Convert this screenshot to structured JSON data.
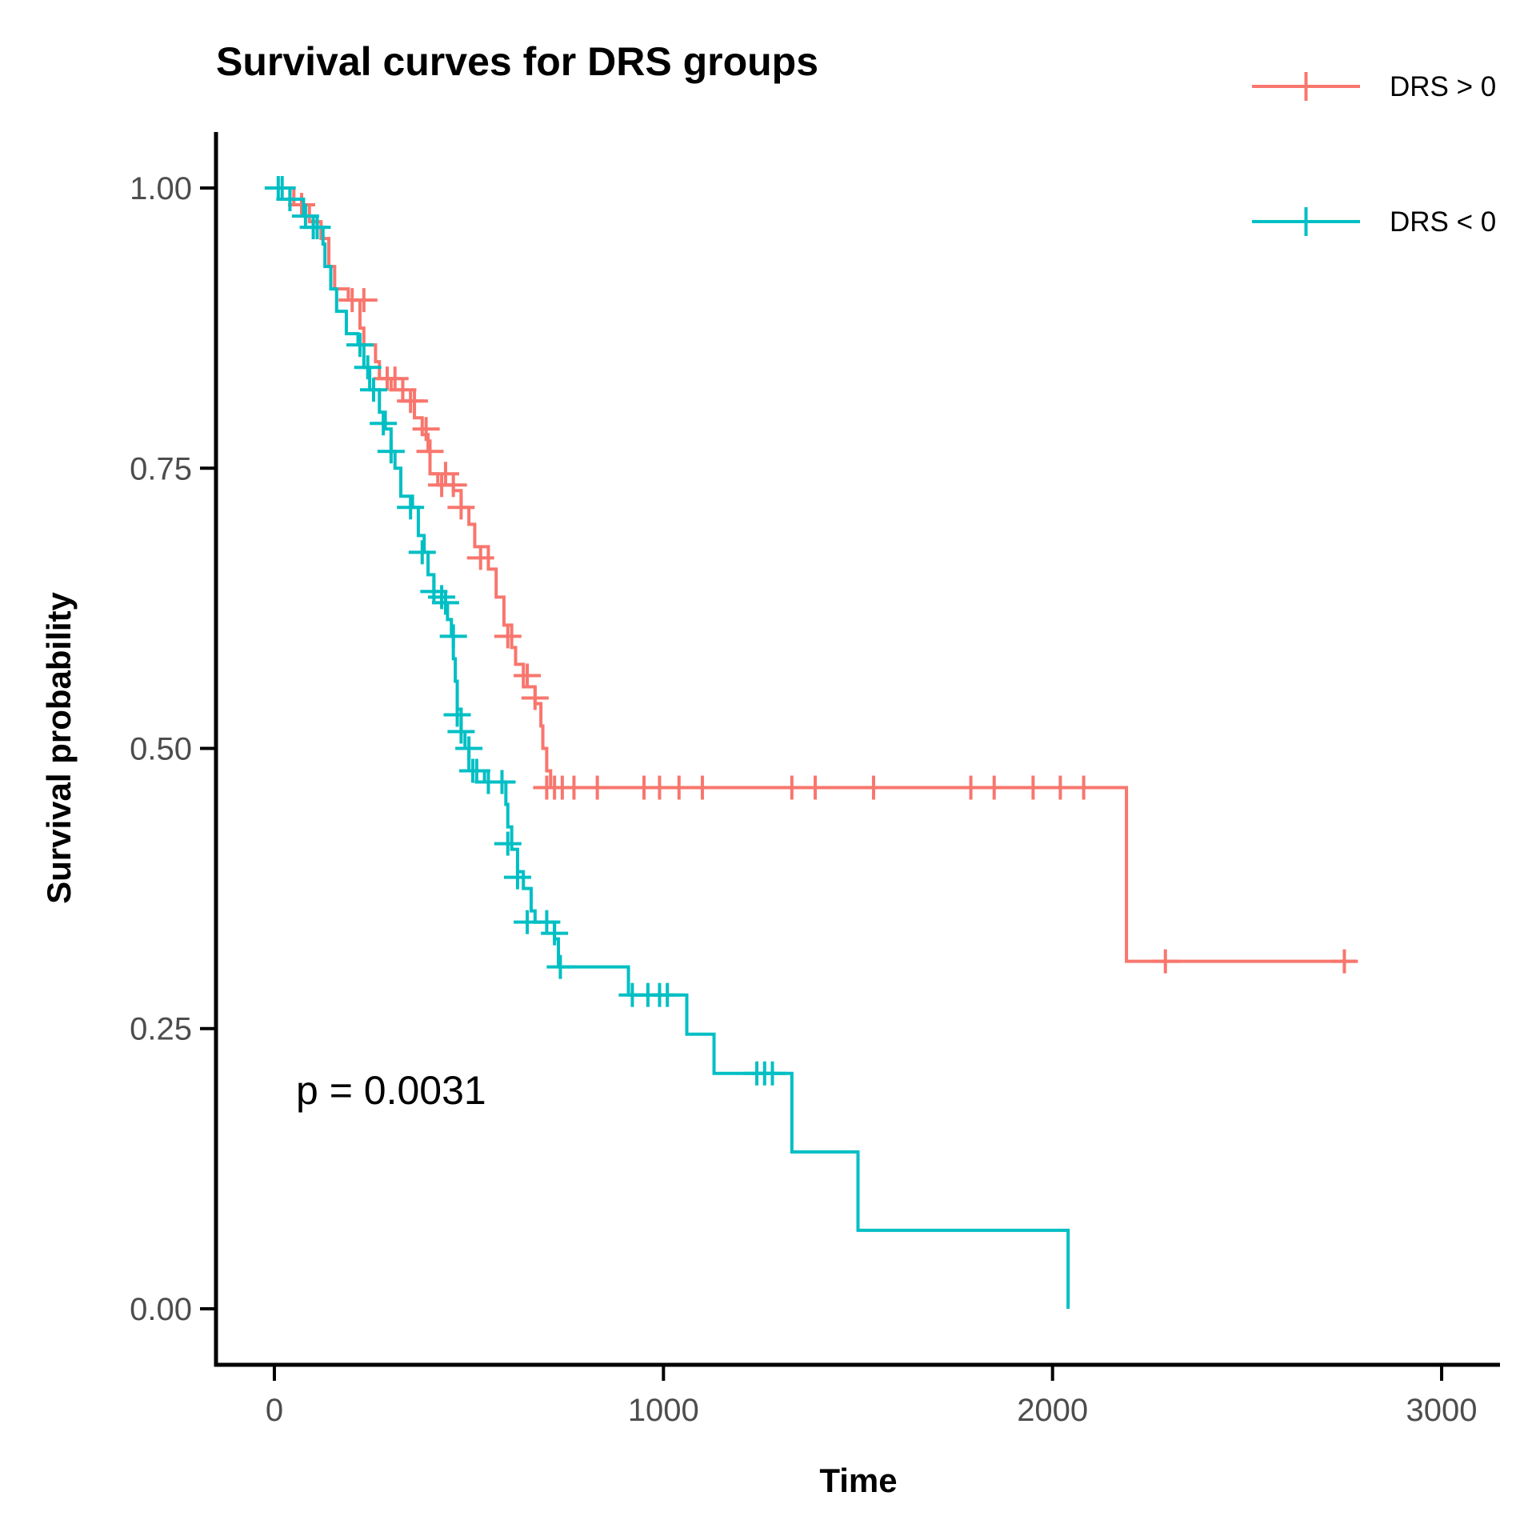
{
  "chart_data": {
    "type": "line",
    "title": "Survival curves for DRS groups",
    "xlabel": "Time",
    "ylabel": "Survival probability",
    "xlim": [
      -150,
      3150
    ],
    "ylim": [
      -0.05,
      1.05
    ],
    "x_ticks": [
      0,
      1000,
      2000,
      3000
    ],
    "x_tick_labels": [
      "0",
      "1000",
      "2000",
      "3000"
    ],
    "y_ticks": [
      0,
      0.25,
      0.5,
      0.75,
      1.0
    ],
    "y_tick_labels": [
      "0.00",
      "0.25",
      "0.50",
      "0.75",
      "1.00"
    ],
    "grid": false,
    "legend_position": "top-right",
    "annotation": {
      "text": "p = 0.0031",
      "x": 60,
      "y": 0.2
    },
    "series": [
      {
        "name": "DRS > 0",
        "color": "#F8766D",
        "steps": [
          [
            0,
            1.0
          ],
          [
            50,
            0.985
          ],
          [
            90,
            0.97
          ],
          [
            120,
            0.955
          ],
          [
            140,
            0.93
          ],
          [
            155,
            0.91
          ],
          [
            190,
            0.9
          ],
          [
            220,
            0.875
          ],
          [
            230,
            0.86
          ],
          [
            260,
            0.845
          ],
          [
            270,
            0.83
          ],
          [
            300,
            0.82
          ],
          [
            330,
            0.81
          ],
          [
            360,
            0.795
          ],
          [
            380,
            0.78
          ],
          [
            395,
            0.765
          ],
          [
            400,
            0.745
          ],
          [
            420,
            0.735
          ],
          [
            460,
            0.73
          ],
          [
            480,
            0.715
          ],
          [
            500,
            0.7
          ],
          [
            515,
            0.68
          ],
          [
            550,
            0.66
          ],
          [
            570,
            0.635
          ],
          [
            590,
            0.61
          ],
          [
            610,
            0.59
          ],
          [
            620,
            0.575
          ],
          [
            640,
            0.555
          ],
          [
            670,
            0.54
          ],
          [
            685,
            0.52
          ],
          [
            690,
            0.5
          ],
          [
            700,
            0.48
          ],
          [
            710,
            0.465
          ],
          [
            2190,
            0.31
          ],
          [
            2780,
            0.31
          ]
        ],
        "censors": [
          [
            70,
            0.985
          ],
          [
            200,
            0.9
          ],
          [
            230,
            0.9
          ],
          [
            290,
            0.83
          ],
          [
            310,
            0.83
          ],
          [
            330,
            0.82
          ],
          [
            350,
            0.81
          ],
          [
            360,
            0.81
          ],
          [
            390,
            0.785
          ],
          [
            400,
            0.765
          ],
          [
            430,
            0.735
          ],
          [
            440,
            0.745
          ],
          [
            460,
            0.735
          ],
          [
            480,
            0.715
          ],
          [
            530,
            0.67
          ],
          [
            600,
            0.6
          ],
          [
            650,
            0.565
          ],
          [
            670,
            0.545
          ],
          [
            700,
            0.465
          ],
          [
            720,
            0.465
          ],
          [
            740,
            0.465
          ],
          [
            770,
            0.465
          ],
          [
            830,
            0.465
          ],
          [
            950,
            0.465
          ],
          [
            990,
            0.465
          ],
          [
            1040,
            0.465
          ],
          [
            1100,
            0.465
          ],
          [
            1330,
            0.465
          ],
          [
            1390,
            0.465
          ],
          [
            1540,
            0.465
          ],
          [
            1790,
            0.465
          ],
          [
            1850,
            0.465
          ],
          [
            1950,
            0.465
          ],
          [
            2020,
            0.465
          ],
          [
            2080,
            0.465
          ],
          [
            2290,
            0.31
          ],
          [
            2750,
            0.31
          ]
        ]
      },
      {
        "name": "DRS < 0",
        "color": "#00BFC4",
        "steps": [
          [
            0,
            1.0
          ],
          [
            40,
            0.99
          ],
          [
            75,
            0.975
          ],
          [
            100,
            0.965
          ],
          [
            125,
            0.95
          ],
          [
            130,
            0.93
          ],
          [
            145,
            0.91
          ],
          [
            160,
            0.89
          ],
          [
            185,
            0.87
          ],
          [
            215,
            0.86
          ],
          [
            230,
            0.84
          ],
          [
            245,
            0.82
          ],
          [
            270,
            0.8
          ],
          [
            285,
            0.785
          ],
          [
            300,
            0.765
          ],
          [
            310,
            0.75
          ],
          [
            325,
            0.725
          ],
          [
            355,
            0.715
          ],
          [
            370,
            0.69
          ],
          [
            385,
            0.675
          ],
          [
            395,
            0.655
          ],
          [
            410,
            0.64
          ],
          [
            430,
            0.63
          ],
          [
            445,
            0.615
          ],
          [
            455,
            0.6
          ],
          [
            460,
            0.58
          ],
          [
            465,
            0.56
          ],
          [
            470,
            0.535
          ],
          [
            480,
            0.515
          ],
          [
            490,
            0.5
          ],
          [
            500,
            0.48
          ],
          [
            540,
            0.47
          ],
          [
            595,
            0.45
          ],
          [
            600,
            0.43
          ],
          [
            610,
            0.41
          ],
          [
            625,
            0.39
          ],
          [
            640,
            0.375
          ],
          [
            660,
            0.355
          ],
          [
            670,
            0.345
          ],
          [
            720,
            0.33
          ],
          [
            730,
            0.305
          ],
          [
            910,
            0.28
          ],
          [
            1060,
            0.245
          ],
          [
            1130,
            0.21
          ],
          [
            1330,
            0.14
          ],
          [
            1500,
            0.07
          ],
          [
            2040,
            0.0
          ]
        ],
        "censors": [
          [
            10,
            1.0
          ],
          [
            20,
            1.0
          ],
          [
            40,
            0.99
          ],
          [
            80,
            0.975
          ],
          [
            100,
            0.965
          ],
          [
            110,
            0.965
          ],
          [
            220,
            0.86
          ],
          [
            240,
            0.84
          ],
          [
            255,
            0.82
          ],
          [
            280,
            0.79
          ],
          [
            300,
            0.765
          ],
          [
            350,
            0.715
          ],
          [
            380,
            0.675
          ],
          [
            410,
            0.64
          ],
          [
            430,
            0.635
          ],
          [
            440,
            0.63
          ],
          [
            460,
            0.6
          ],
          [
            470,
            0.53
          ],
          [
            480,
            0.515
          ],
          [
            500,
            0.5
          ],
          [
            510,
            0.48
          ],
          [
            520,
            0.48
          ],
          [
            550,
            0.47
          ],
          [
            585,
            0.47
          ],
          [
            600,
            0.415
          ],
          [
            625,
            0.385
          ],
          [
            650,
            0.345
          ],
          [
            700,
            0.345
          ],
          [
            720,
            0.335
          ],
          [
            735,
            0.305
          ],
          [
            920,
            0.28
          ],
          [
            960,
            0.28
          ],
          [
            990,
            0.28
          ],
          [
            1010,
            0.28
          ],
          [
            1240,
            0.21
          ],
          [
            1260,
            0.21
          ],
          [
            1280,
            0.21
          ]
        ]
      }
    ]
  }
}
